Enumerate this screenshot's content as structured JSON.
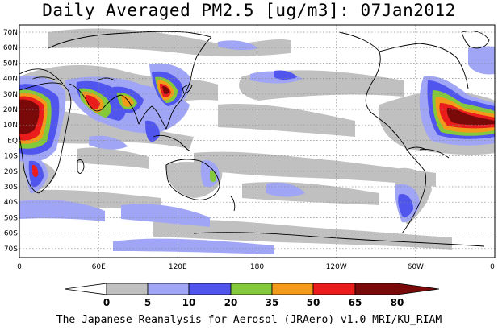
{
  "title": "Daily Averaged PM2.5 [ug/m3]: 07Jan2012",
  "footer": "The Japanese Reanalysis for Aerosol (JRAero) v1.0 MRI/KU_RIAM",
  "lat_labels": [
    "70N",
    "60N",
    "50N",
    "40N",
    "30N",
    "20N",
    "10N",
    "EQ",
    "10S",
    "20S",
    "30S",
    "40S",
    "50S",
    "60S",
    "70S"
  ],
  "lon_labels": [
    "0",
    "60E",
    "120E",
    "180",
    "120W",
    "60W",
    "0"
  ],
  "colorbar": {
    "labels": [
      "0",
      "5",
      "10",
      "20",
      "35",
      "50",
      "65",
      "80"
    ],
    "colors": [
      "#ffffff",
      "#c0c0c0",
      "#a0a6f5",
      "#5055ee",
      "#84c83c",
      "#f39a1a",
      "#ea1c1c",
      "#7a0a0a"
    ]
  },
  "map": {
    "lat_range": [
      -75,
      75
    ],
    "lon_range": [
      0,
      360
    ],
    "grid": "dotted",
    "ocean_color": "#ffffff",
    "coastline_color": "#000000"
  }
}
